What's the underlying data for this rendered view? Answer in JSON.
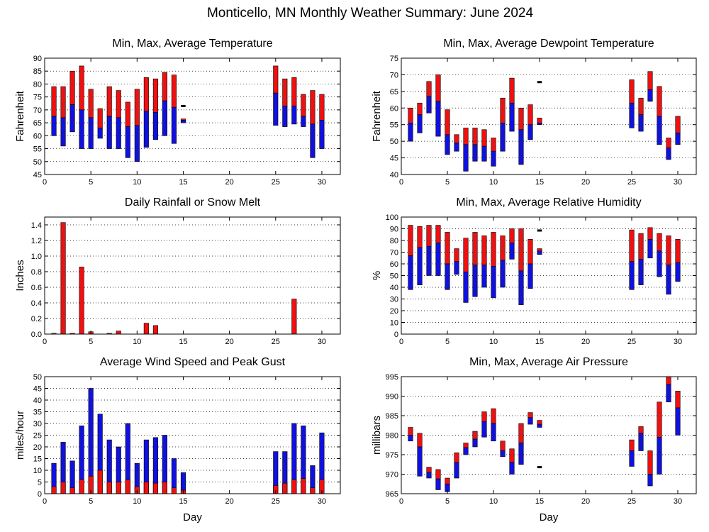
{
  "title": "Monticello, MN Monthly Weather Summary: June 2024",
  "colors": {
    "red": "#ee1111",
    "blue": "#1111dd",
    "outline": "#000000"
  },
  "chart_data": [
    {
      "id": "temp",
      "type": "bar",
      "subtype": "floating-range",
      "title": "Min, Max, Average Temperature",
      "xlabel": "",
      "ylabel": "Fahrenheit",
      "xlim": [
        0,
        32
      ],
      "xticks": [
        0,
        5,
        10,
        15,
        20,
        25,
        30
      ],
      "ylim": [
        45,
        90
      ],
      "yticks": [
        45,
        50,
        55,
        60,
        65,
        70,
        75,
        80,
        85,
        90
      ],
      "grid": true,
      "bars": [
        {
          "x": 1,
          "min": 60,
          "avg": 67.5,
          "max": 79
        },
        {
          "x": 2,
          "min": 56,
          "avg": 67,
          "max": 79
        },
        {
          "x": 3,
          "min": 61.5,
          "avg": 72,
          "max": 85
        },
        {
          "x": 4,
          "min": 55,
          "avg": 70,
          "max": 87
        },
        {
          "x": 5,
          "min": 55,
          "avg": 67,
          "max": 78
        },
        {
          "x": 6,
          "min": 59,
          "avg": 63,
          "max": 70.5
        },
        {
          "x": 7,
          "min": 55,
          "avg": 67.5,
          "max": 79
        },
        {
          "x": 8,
          "min": 55,
          "avg": 67,
          "max": 77.5
        },
        {
          "x": 9,
          "min": 51.5,
          "avg": 63.5,
          "max": 73
        },
        {
          "x": 10,
          "min": 50,
          "avg": 64,
          "max": 78
        },
        {
          "x": 11,
          "min": 55.5,
          "avg": 69.5,
          "max": 82.5
        },
        {
          "x": 12,
          "min": 58.5,
          "avg": 69,
          "max": 82
        },
        {
          "x": 13,
          "min": 60,
          "avg": 73.5,
          "max": 84.5
        },
        {
          "x": 14,
          "min": 57,
          "avg": 71,
          "max": 83.5
        },
        {
          "x": 15,
          "min": 65,
          "avg": 66,
          "max": 66.5
        },
        {
          "x": 25,
          "min": 64,
          "avg": 76.5,
          "max": 87
        },
        {
          "x": 26,
          "min": 63.5,
          "avg": 71.5,
          "max": 82
        },
        {
          "x": 27,
          "min": 64.5,
          "avg": 71.5,
          "max": 82.5
        },
        {
          "x": 28,
          "min": 63.5,
          "avg": 67.5,
          "max": 76
        },
        {
          "x": 29,
          "min": 51.5,
          "avg": 64.5,
          "max": 77.5
        },
        {
          "x": 30,
          "min": 55,
          "avg": 66,
          "max": 76
        }
      ],
      "markers": [
        {
          "x": 15,
          "y": 71.5
        }
      ]
    },
    {
      "id": "dew",
      "type": "bar",
      "subtype": "floating-range",
      "title": "Min, Max, Average Dewpoint Temperature",
      "xlabel": "",
      "ylabel": "Fahrenheit",
      "xlim": [
        0,
        32
      ],
      "xticks": [
        0,
        5,
        10,
        15,
        20,
        25,
        30
      ],
      "ylim": [
        40,
        75
      ],
      "yticks": [
        40,
        45,
        50,
        55,
        60,
        65,
        70,
        75
      ],
      "grid": true,
      "bars": [
        {
          "x": 1,
          "min": 50,
          "avg": 55.5,
          "max": 60
        },
        {
          "x": 2,
          "min": 52.5,
          "avg": 58,
          "max": 61.5
        },
        {
          "x": 3,
          "min": 58.5,
          "avg": 63.5,
          "max": 68
        },
        {
          "x": 4,
          "min": 51.5,
          "avg": 62,
          "max": 70
        },
        {
          "x": 5,
          "min": 46,
          "avg": 52,
          "max": 59.5
        },
        {
          "x": 6,
          "min": 47,
          "avg": 49.5,
          "max": 52
        },
        {
          "x": 7,
          "min": 41,
          "avg": 49,
          "max": 54
        },
        {
          "x": 8,
          "min": 44,
          "avg": 49,
          "max": 54
        },
        {
          "x": 9,
          "min": 44,
          "avg": 48.5,
          "max": 53.5
        },
        {
          "x": 10,
          "min": 42.5,
          "avg": 47,
          "max": 51
        },
        {
          "x": 11,
          "min": 47,
          "avg": 55.5,
          "max": 63
        },
        {
          "x": 12,
          "min": 53,
          "avg": 61.5,
          "max": 69
        },
        {
          "x": 13,
          "min": 43,
          "avg": 53.5,
          "max": 60
        },
        {
          "x": 14,
          "min": 50.5,
          "avg": 55,
          "max": 61
        },
        {
          "x": 15,
          "min": 55,
          "avg": 55.5,
          "max": 57
        },
        {
          "x": 25,
          "min": 54,
          "avg": 61.5,
          "max": 68.5
        },
        {
          "x": 26,
          "min": 53,
          "avg": 58,
          "max": 63
        },
        {
          "x": 27,
          "min": 62,
          "avg": 65.5,
          "max": 71
        },
        {
          "x": 28,
          "min": 49,
          "avg": 57.5,
          "max": 66.5
        },
        {
          "x": 29,
          "min": 44.5,
          "avg": 48,
          "max": 51
        },
        {
          "x": 30,
          "min": 49,
          "avg": 52.5,
          "max": 57.5
        }
      ],
      "markers": [
        {
          "x": 15,
          "y": 67.8
        }
      ]
    },
    {
      "id": "rain",
      "type": "bar",
      "title": "Daily Rainfall or Snow Melt",
      "xlabel": "",
      "ylabel": "Inches",
      "xlim": [
        0,
        32
      ],
      "xticks": [
        0,
        5,
        10,
        15,
        20,
        25,
        30
      ],
      "ylim": [
        0,
        1.5
      ],
      "yticks": [
        0,
        0.2,
        0.4,
        0.6,
        0.8,
        1.0,
        1.2,
        1.4
      ],
      "ytick_labels": [
        "0.0",
        "0.2",
        "0.4",
        "0.6",
        "0.8",
        "1.0",
        "1.2",
        "1.4"
      ],
      "grid": true,
      "values": [
        {
          "x": 1,
          "v": 0.01
        },
        {
          "x": 2,
          "v": 1.43
        },
        {
          "x": 3,
          "v": 0.01
        },
        {
          "x": 4,
          "v": 0.86
        },
        {
          "x": 5,
          "v": 0.03
        },
        {
          "x": 7,
          "v": 0.01
        },
        {
          "x": 8,
          "v": 0.04
        },
        {
          "x": 11,
          "v": 0.14
        },
        {
          "x": 12,
          "v": 0.11
        },
        {
          "x": 27,
          "v": 0.45
        }
      ]
    },
    {
      "id": "rh",
      "type": "bar",
      "subtype": "floating-range",
      "title": "Min, Max, Average Relative Humidity",
      "xlabel": "",
      "ylabel": "%",
      "xlim": [
        0,
        32
      ],
      "xticks": [
        0,
        5,
        10,
        15,
        20,
        25,
        30
      ],
      "ylim": [
        0,
        100
      ],
      "yticks": [
        0,
        10,
        20,
        30,
        40,
        50,
        60,
        70,
        80,
        90,
        100
      ],
      "grid": true,
      "bars": [
        {
          "x": 1,
          "min": 38,
          "avg": 67,
          "max": 93
        },
        {
          "x": 2,
          "min": 42,
          "avg": 74,
          "max": 92
        },
        {
          "x": 3,
          "min": 50,
          "avg": 75,
          "max": 93
        },
        {
          "x": 4,
          "min": 50,
          "avg": 78,
          "max": 93
        },
        {
          "x": 5,
          "min": 38,
          "avg": 60,
          "max": 87
        },
        {
          "x": 6,
          "min": 51,
          "avg": 62,
          "max": 73
        },
        {
          "x": 7,
          "min": 27,
          "avg": 53,
          "max": 82
        },
        {
          "x": 8,
          "min": 32,
          "avg": 59,
          "max": 87
        },
        {
          "x": 9,
          "min": 40,
          "avg": 59,
          "max": 84
        },
        {
          "x": 10,
          "min": 31,
          "avg": 58,
          "max": 87
        },
        {
          "x": 11,
          "min": 40,
          "avg": 63,
          "max": 84
        },
        {
          "x": 12,
          "min": 64,
          "avg": 78,
          "max": 90
        },
        {
          "x": 13,
          "min": 25,
          "avg": 54,
          "max": 90
        },
        {
          "x": 14,
          "min": 39,
          "avg": 60,
          "max": 81
        },
        {
          "x": 15,
          "min": 68,
          "avg": 71,
          "max": 73
        },
        {
          "x": 25,
          "min": 38,
          "avg": 62,
          "max": 89
        },
        {
          "x": 26,
          "min": 42,
          "avg": 64,
          "max": 86
        },
        {
          "x": 27,
          "min": 65,
          "avg": 81,
          "max": 91
        },
        {
          "x": 28,
          "min": 49,
          "avg": 71,
          "max": 86
        },
        {
          "x": 29,
          "min": 34,
          "avg": 59,
          "max": 84
        },
        {
          "x": 30,
          "min": 45,
          "avg": 61,
          "max": 81
        }
      ],
      "markers": [
        {
          "x": 15,
          "y": 88.5
        }
      ]
    },
    {
      "id": "wind",
      "type": "bar",
      "subtype": "overlay",
      "title": "Average Wind Speed and Peak Gust",
      "xlabel": "Day",
      "ylabel": "miles/hour",
      "xlim": [
        0,
        32
      ],
      "xticks": [
        0,
        5,
        10,
        15,
        20,
        25,
        30
      ],
      "ylim": [
        0,
        50
      ],
      "yticks": [
        0,
        5,
        10,
        15,
        20,
        25,
        30,
        35,
        40,
        45,
        50
      ],
      "grid": true,
      "bars": [
        {
          "x": 1,
          "avg": 3,
          "gust": 13
        },
        {
          "x": 2,
          "avg": 5,
          "gust": 22
        },
        {
          "x": 3,
          "avg": 2.5,
          "gust": 14
        },
        {
          "x": 4,
          "avg": 6,
          "gust": 29
        },
        {
          "x": 5,
          "avg": 7.5,
          "gust": 45
        },
        {
          "x": 6,
          "avg": 10,
          "gust": 34
        },
        {
          "x": 7,
          "avg": 5,
          "gust": 23
        },
        {
          "x": 8,
          "avg": 5,
          "gust": 20
        },
        {
          "x": 9,
          "avg": 6,
          "gust": 30
        },
        {
          "x": 10,
          "avg": 3,
          "gust": 13
        },
        {
          "x": 11,
          "avg": 5,
          "gust": 23
        },
        {
          "x": 12,
          "avg": 4.5,
          "gust": 24
        },
        {
          "x": 13,
          "avg": 5,
          "gust": 25
        },
        {
          "x": 14,
          "avg": 2.5,
          "gust": 15
        },
        {
          "x": 15,
          "avg": 1.5,
          "gust": 9
        },
        {
          "x": 25,
          "avg": 3.5,
          "gust": 18
        },
        {
          "x": 26,
          "avg": 4.5,
          "gust": 18
        },
        {
          "x": 27,
          "avg": 6,
          "gust": 30
        },
        {
          "x": 28,
          "avg": 6.5,
          "gust": 29
        },
        {
          "x": 29,
          "avg": 2.5,
          "gust": 12
        },
        {
          "x": 30,
          "avg": 6,
          "gust": 26
        }
      ]
    },
    {
      "id": "press",
      "type": "bar",
      "subtype": "floating-range",
      "title": "Min, Max, Average Air Pressure",
      "xlabel": "Day",
      "ylabel": "millibars",
      "xlim": [
        0,
        32
      ],
      "xticks": [
        0,
        5,
        10,
        15,
        20,
        25,
        30
      ],
      "ylim": [
        965,
        995
      ],
      "yticks": [
        965,
        970,
        975,
        980,
        985,
        990,
        995
      ],
      "grid": true,
      "bars": [
        {
          "x": 1,
          "min": 978.5,
          "avg": 980,
          "max": 982
        },
        {
          "x": 2,
          "min": 969.5,
          "avg": 977,
          "max": 980.5
        },
        {
          "x": 3,
          "min": 969,
          "avg": 970.5,
          "max": 971.8
        },
        {
          "x": 4,
          "min": 966,
          "avg": 968.8,
          "max": 971.2
        },
        {
          "x": 5,
          "min": 965.5,
          "avg": 967.5,
          "max": 969
        },
        {
          "x": 6,
          "min": 969,
          "avg": 973,
          "max": 975.5
        },
        {
          "x": 7,
          "min": 975,
          "avg": 976.8,
          "max": 978
        },
        {
          "x": 8,
          "min": 977,
          "avg": 979,
          "max": 981
        },
        {
          "x": 9,
          "min": 979.5,
          "avg": 983.5,
          "max": 986
        },
        {
          "x": 10,
          "min": 978.5,
          "avg": 983,
          "max": 986.8
        },
        {
          "x": 11,
          "min": 974.5,
          "avg": 976,
          "max": 978.5
        },
        {
          "x": 12,
          "min": 970,
          "avg": 973,
          "max": 976.5
        },
        {
          "x": 13,
          "min": 972.5,
          "avg": 978,
          "max": 983
        },
        {
          "x": 14,
          "min": 982.8,
          "avg": 984.5,
          "max": 985.8
        },
        {
          "x": 15,
          "min": 982,
          "avg": 982.8,
          "max": 983.8
        },
        {
          "x": 25,
          "min": 972,
          "avg": 976,
          "max": 978.8
        },
        {
          "x": 26,
          "min": 976,
          "avg": 980.5,
          "max": 982.2
        },
        {
          "x": 27,
          "min": 967,
          "avg": 970,
          "max": 976
        },
        {
          "x": 28,
          "min": 970,
          "avg": 979.5,
          "max": 988.5
        },
        {
          "x": 29,
          "min": 988.5,
          "avg": 993,
          "max": 995
        },
        {
          "x": 30,
          "min": 980,
          "avg": 987,
          "max": 991.3
        }
      ],
      "markers": [
        {
          "x": 15,
          "y": 971.8
        }
      ]
    }
  ]
}
